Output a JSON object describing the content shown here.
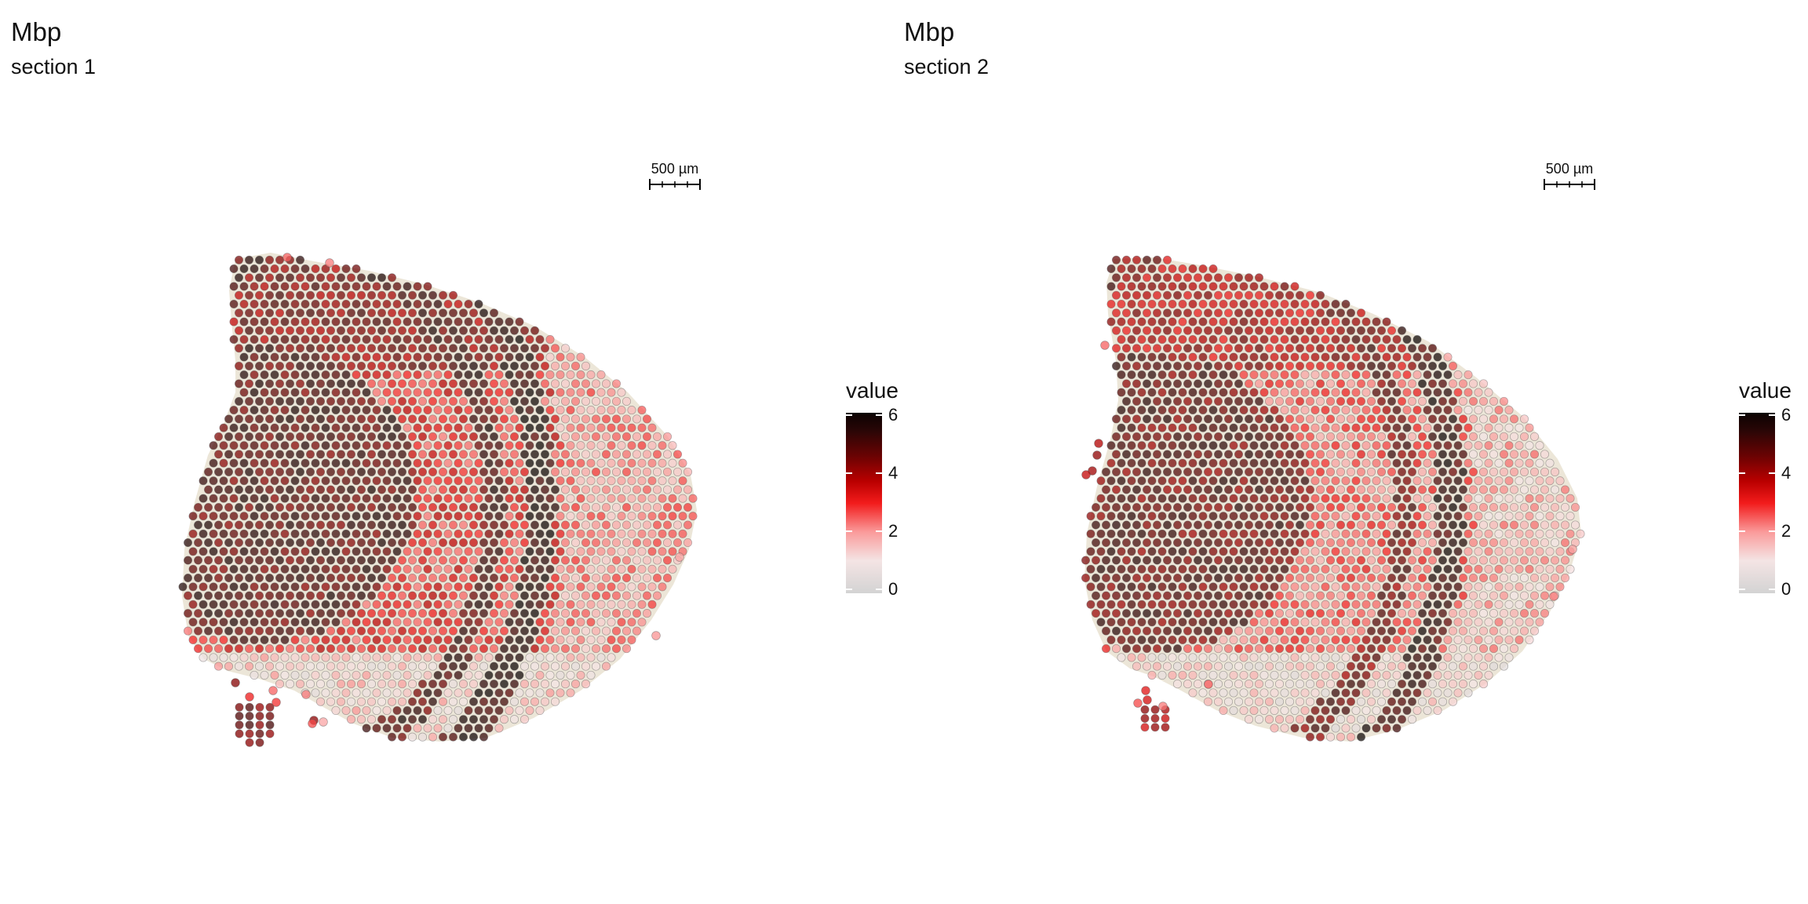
{
  "chart_data": [
    {
      "type": "scatter",
      "title": "Mbp",
      "subtitle": "section 1",
      "legend": {
        "title": "value",
        "ticks": [
          "0",
          "2",
          "4",
          "6"
        ],
        "range": [
          0,
          6.3
        ],
        "placement": "right"
      },
      "scale_bar": "500 µm",
      "colors": {
        "low": "#d3d3d3",
        "mid": "#f21b1b",
        "high": "#0a0302"
      }
    },
    {
      "type": "scatter",
      "title": "Mbp",
      "subtitle": "section 2",
      "legend": {
        "title": "value",
        "ticks": [
          "0",
          "2",
          "4",
          "6"
        ],
        "range": [
          0,
          6.3
        ],
        "placement": "right"
      },
      "scale_bar": "500 µm",
      "colors": {
        "low": "#d3d3d3",
        "mid": "#f21b1b",
        "high": "#0a0302"
      }
    }
  ]
}
